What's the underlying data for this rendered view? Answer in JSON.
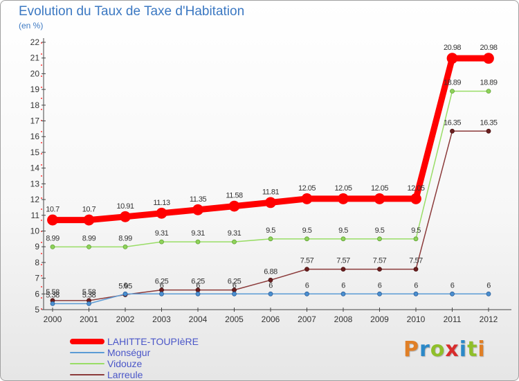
{
  "title": "Evolution du Taux de Taxe d'Habitation",
  "subtitle": "(en %)",
  "logo": {
    "text": "Proxiti",
    "colors": [
      "#e07f26",
      "#2a88c8",
      "#8fbf2a",
      "#d82c2c",
      "#2a88c8",
      "#8fbf2a",
      "#e07f26"
    ]
  },
  "chart_data": {
    "type": "line",
    "title": "Evolution du Taux de Taxe d'Habitation",
    "ylabel": "(en %)",
    "xlabel": "",
    "x": [
      "2000",
      "2001",
      "2002",
      "2003",
      "2004",
      "2005",
      "2006",
      "2007",
      "2008",
      "2009",
      "2010",
      "2011",
      "2012"
    ],
    "ylim": [
      5,
      22
    ],
    "yticks": [
      5,
      6,
      7,
      8,
      9,
      10,
      11,
      12,
      13,
      14,
      15,
      16,
      17,
      18,
      19,
      20,
      21,
      22
    ],
    "grid": false,
    "legend_position": "bottom-left",
    "series": [
      {
        "name": "LAHITTE-TOUPIèRE",
        "color": "#ff0000",
        "values": [
          10.7,
          10.7,
          10.91,
          11.13,
          11.35,
          11.58,
          11.81,
          12.05,
          12.05,
          12.05,
          12.05,
          20.98,
          20.98
        ],
        "labels": [
          "10.7",
          "10.7",
          "10.91",
          "11.13",
          "11.35",
          "11.58",
          "11.81",
          "12.05",
          "12.05",
          "12.05",
          "12.05",
          "20.98",
          "20.98"
        ]
      },
      {
        "name": "Monségur",
        "color": "#5b9bd5",
        "values": [
          5.38,
          5.38,
          6,
          6,
          6,
          6,
          6,
          6,
          6,
          6,
          6,
          6,
          6
        ],
        "labels": [
          "5.38",
          "5.38",
          "6",
          "6",
          "6",
          "6",
          "6",
          "6",
          "6",
          "6",
          "6",
          "6",
          "6"
        ]
      },
      {
        "name": "Vidouze",
        "color": "#99dd66",
        "values": [
          8.99,
          8.99,
          8.99,
          9.31,
          9.31,
          9.31,
          9.5,
          9.5,
          9.5,
          9.5,
          9.5,
          18.89,
          18.89
        ],
        "labels": [
          "8.99",
          "8.99",
          "8.99",
          "9.31",
          "9.31",
          "9.31",
          "9.5",
          "9.5",
          "9.5",
          "9.5",
          "9.5",
          "18.89",
          "18.89"
        ]
      },
      {
        "name": "Larreule",
        "color": "#8b3a3a",
        "values": [
          5.58,
          5.58,
          5.95,
          6.25,
          6.25,
          6.25,
          6.88,
          7.57,
          7.57,
          7.57,
          7.57,
          16.35,
          16.35
        ],
        "labels": [
          "5.58",
          "5.58",
          "5.95",
          "6.25",
          "6.25",
          "6.25",
          "6.88",
          "7.57",
          "7.57",
          "7.57",
          "7.57",
          "16.35",
          "16.35"
        ]
      }
    ]
  }
}
